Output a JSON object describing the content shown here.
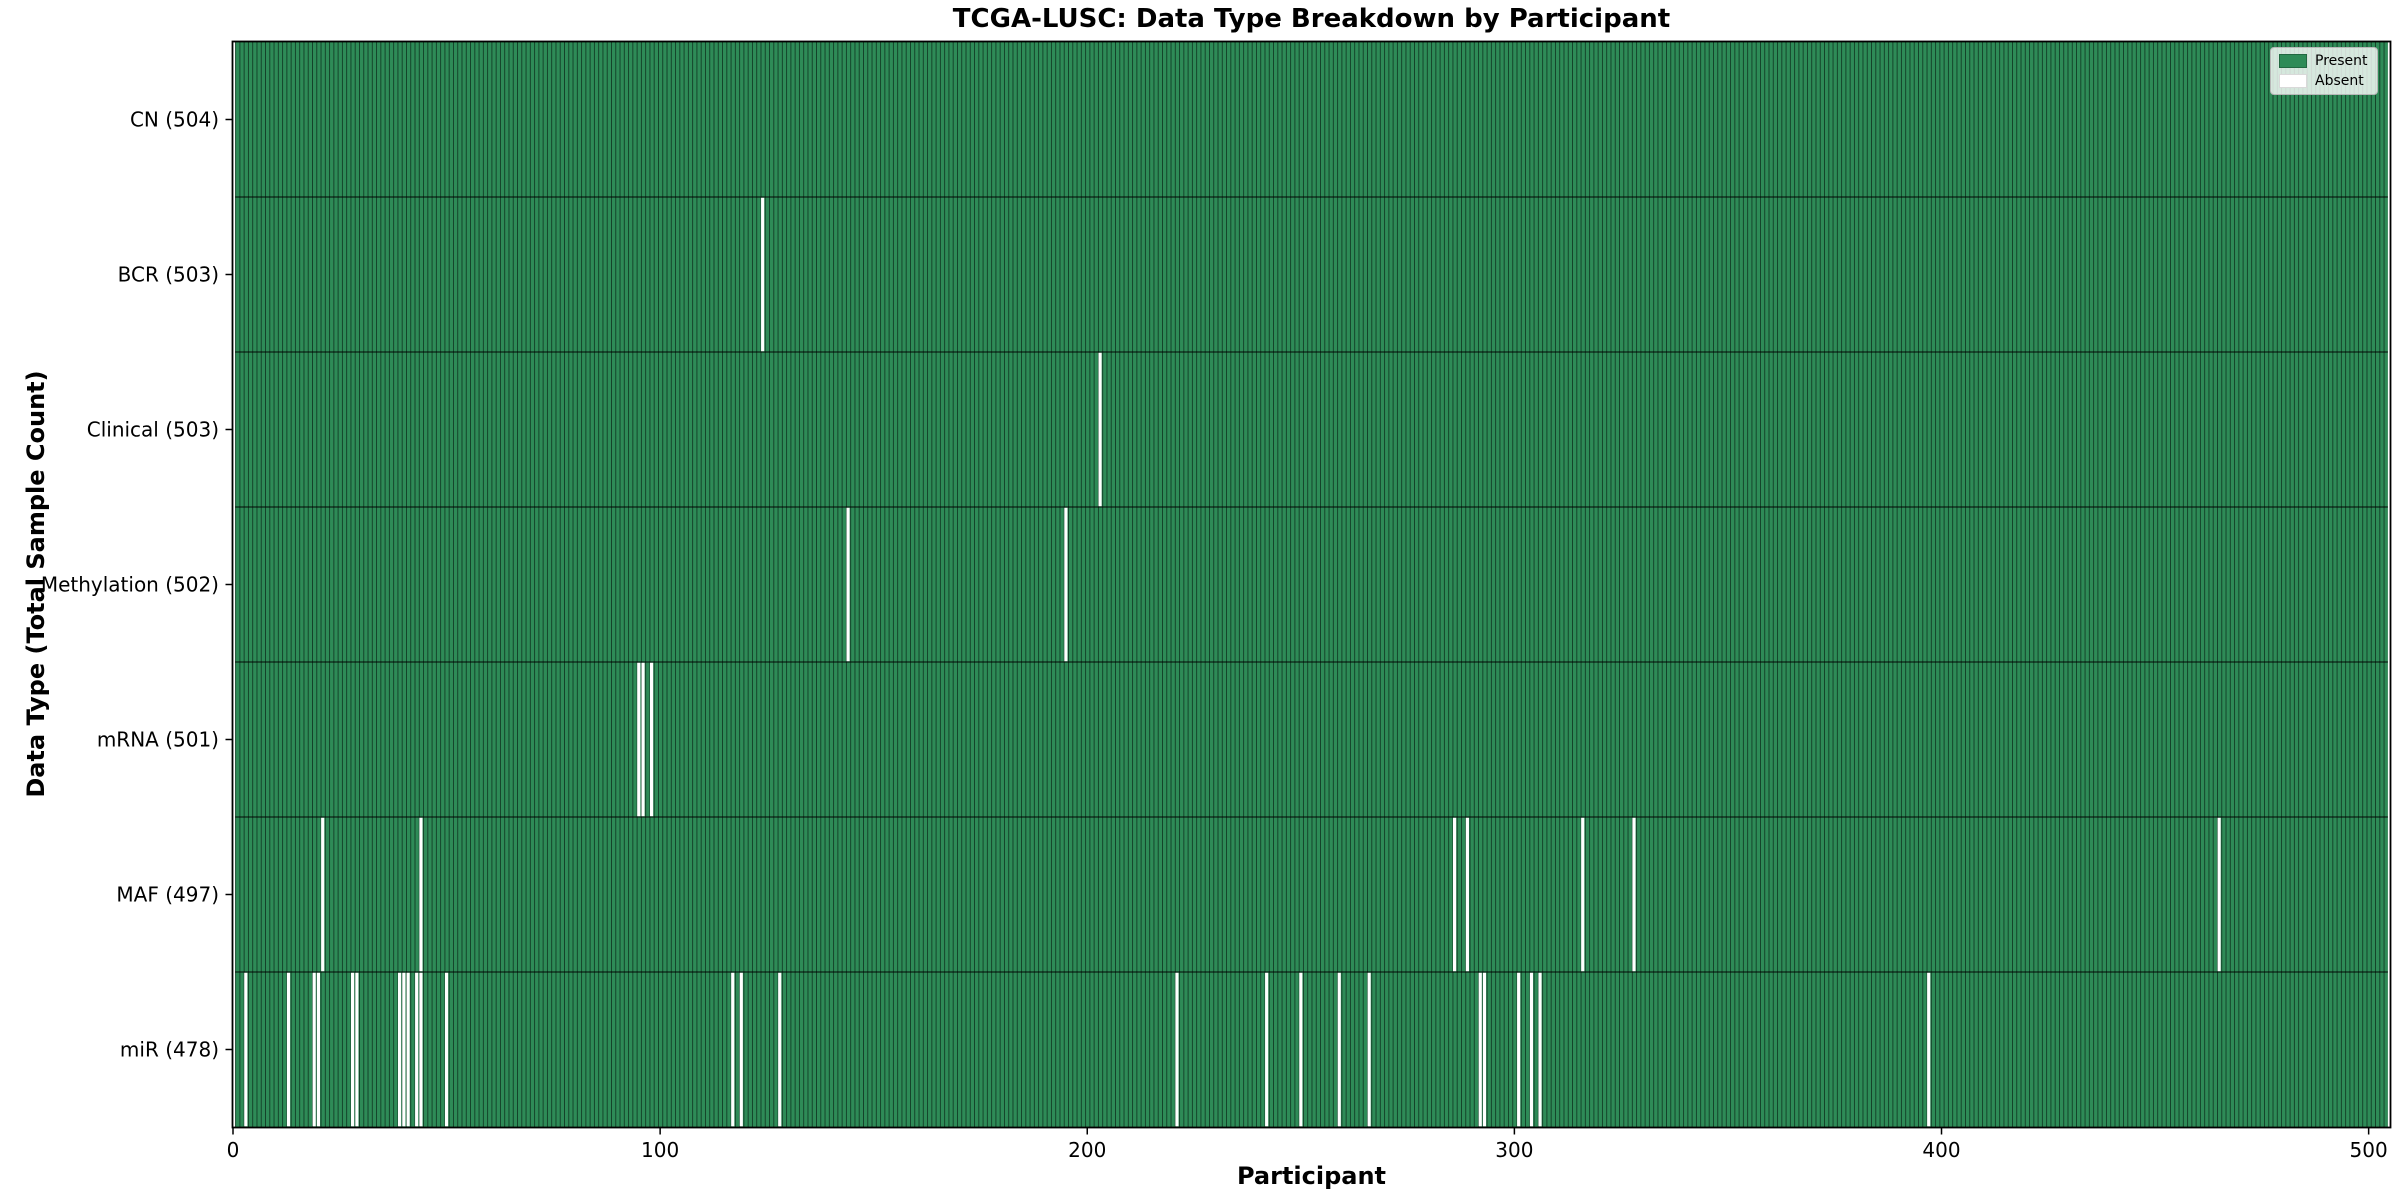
{
  "chart_data": {
    "type": "heatmap",
    "title": "TCGA-LUSC: Data Type Breakdown by Participant",
    "xlabel": "Participant",
    "ylabel": "Data Type (Total Sample Count)",
    "xlim": [
      0,
      505
    ],
    "n_participants": 504,
    "grid": false,
    "x_ticks": [
      {
        "label": "0",
        "value": 0
      },
      {
        "label": "100",
        "value": 100
      },
      {
        "label": "200",
        "value": 200
      },
      {
        "label": "300",
        "value": 300
      },
      {
        "label": "400",
        "value": 400
      },
      {
        "label": "500",
        "value": 500
      }
    ],
    "legend": {
      "position": "upper right",
      "entries": [
        {
          "label": "Present",
          "color": "#2e8b57"
        },
        {
          "label": "Absent",
          "color": "#ffffff"
        }
      ]
    },
    "rows": [
      {
        "label": "CN (504)",
        "total": 504,
        "absent_participants": []
      },
      {
        "label": "BCR (503)",
        "total": 503,
        "absent_participants": [
          124
        ]
      },
      {
        "label": "Clinical (503)",
        "total": 503,
        "absent_participants": [
          203
        ]
      },
      {
        "label": "Methylation (502)",
        "total": 502,
        "absent_participants": [
          144,
          195
        ]
      },
      {
        "label": "mRNA (501)",
        "total": 501,
        "absent_participants": [
          95,
          96,
          98
        ]
      },
      {
        "label": "MAF (497)",
        "total": 497,
        "absent_participants": [
          21,
          44,
          286,
          289,
          316,
          328,
          465
        ]
      },
      {
        "label": "miR (478)",
        "total": 478,
        "absent_participants": [
          3,
          13,
          19,
          20,
          28,
          29,
          39,
          40,
          41,
          43,
          44,
          50,
          117,
          119,
          128,
          221,
          242,
          250,
          259,
          266,
          292,
          293,
          301,
          304,
          306,
          397
        ]
      }
    ],
    "colors": {
      "present": "#2e8b57",
      "absent": "#ffffff",
      "bar_edge": "rgba(5,25,15,0.65)",
      "row_divider": "rgba(0,0,0,0.75)",
      "spine": "#000000"
    }
  }
}
